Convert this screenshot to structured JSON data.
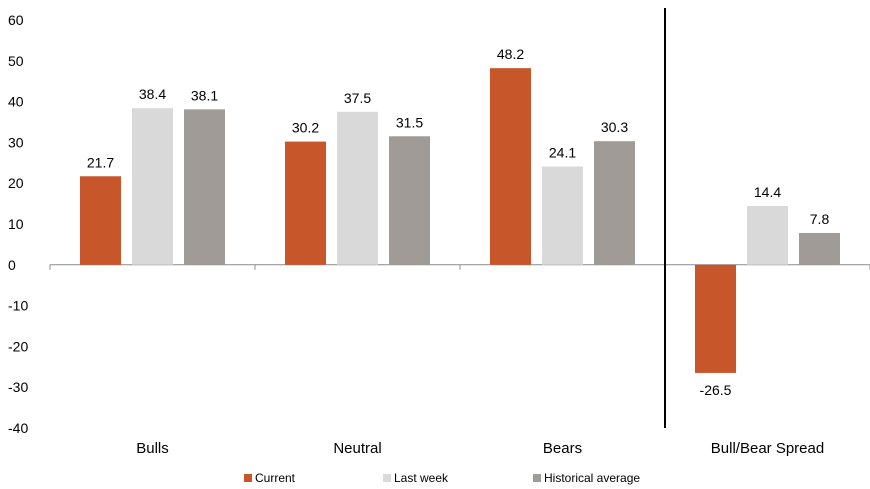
{
  "chart_data": {
    "type": "bar",
    "categories": [
      "Bulls",
      "Neutral",
      "Bears",
      "Bull/Bear Spread"
    ],
    "series": [
      {
        "name": "Current",
        "values": [
          21.7,
          30.2,
          48.2,
          -26.5
        ],
        "color": "#c8562b"
      },
      {
        "name": "Last week",
        "values": [
          38.4,
          37.5,
          24.1,
          14.4
        ],
        "color": "#d9d9d9"
      },
      {
        "name": "Historical average",
        "values": [
          38.1,
          31.5,
          30.3,
          7.8
        ],
        "color": "#a09b96"
      }
    ],
    "value_labels": [
      [
        "21.7",
        "30.2",
        "48.2",
        "-26.5"
      ],
      [
        "38.4",
        "37.5",
        "24.1",
        "14.4"
      ],
      [
        "38.1",
        "31.5",
        "30.3",
        "7.8"
      ]
    ],
    "title": "",
    "xlabel": "",
    "ylabel": "",
    "ylim": [
      -40,
      60
    ],
    "yticks": [
      "60",
      "50",
      "40",
      "30",
      "20",
      "10",
      "0",
      "-10",
      "-20",
      "-30",
      "-40"
    ],
    "grid": false,
    "legend_position": "bottom",
    "divider_before_category": "Bull/Bear Spread"
  }
}
